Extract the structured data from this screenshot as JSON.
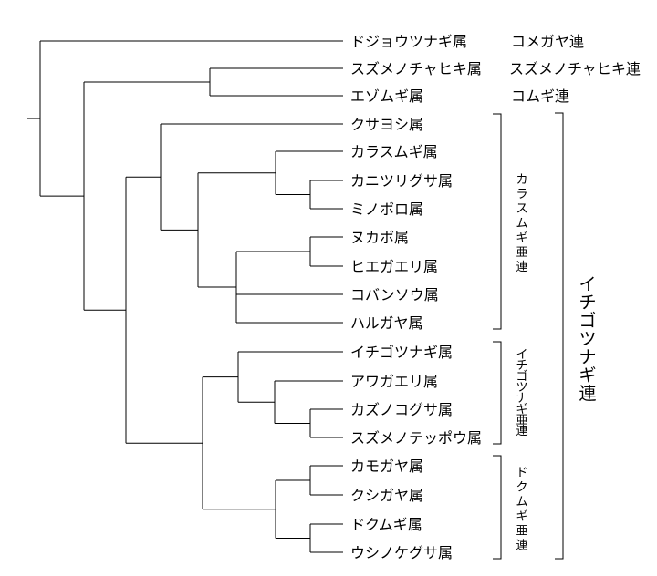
{
  "genera": [
    {
      "name": "ドジョウツナギ属"
    },
    {
      "name": "スズメノチャヒキ属"
    },
    {
      "name": "エゾムギ属"
    },
    {
      "name": "クサヨシ属"
    },
    {
      "name": "カラスムギ属"
    },
    {
      "name": "カニツリグサ属"
    },
    {
      "name": "ミノボロ属"
    },
    {
      "name": "ヌカボ属"
    },
    {
      "name": "ヒエガエリ属"
    },
    {
      "name": "コバンソウ属"
    },
    {
      "name": "ハルガヤ属"
    },
    {
      "name": "イチゴツナギ属"
    },
    {
      "name": "アワガエリ属"
    },
    {
      "name": "カズノコグサ属"
    },
    {
      "name": "スズメノテッポウ属"
    },
    {
      "name": "カモガヤ属"
    },
    {
      "name": "クシガヤ属"
    },
    {
      "name": "ドクムギ属"
    },
    {
      "name": "ウシノケグサ属"
    }
  ],
  "tribe_labels": [
    "コメガヤ連",
    "スズメノチャヒキ連",
    "コムギ連"
  ],
  "subtribes": [
    {
      "label": "カラスムギ亜連",
      "from": 3,
      "to": 10
    },
    {
      "label": "イチゴツナギ亜連",
      "from": 11,
      "to": 14
    },
    {
      "label": "ドクムギ亜連",
      "from": 15,
      "to": 18
    }
  ],
  "big_group": {
    "label": "イチゴツナギ連",
    "from": 3,
    "to": 18
  }
}
